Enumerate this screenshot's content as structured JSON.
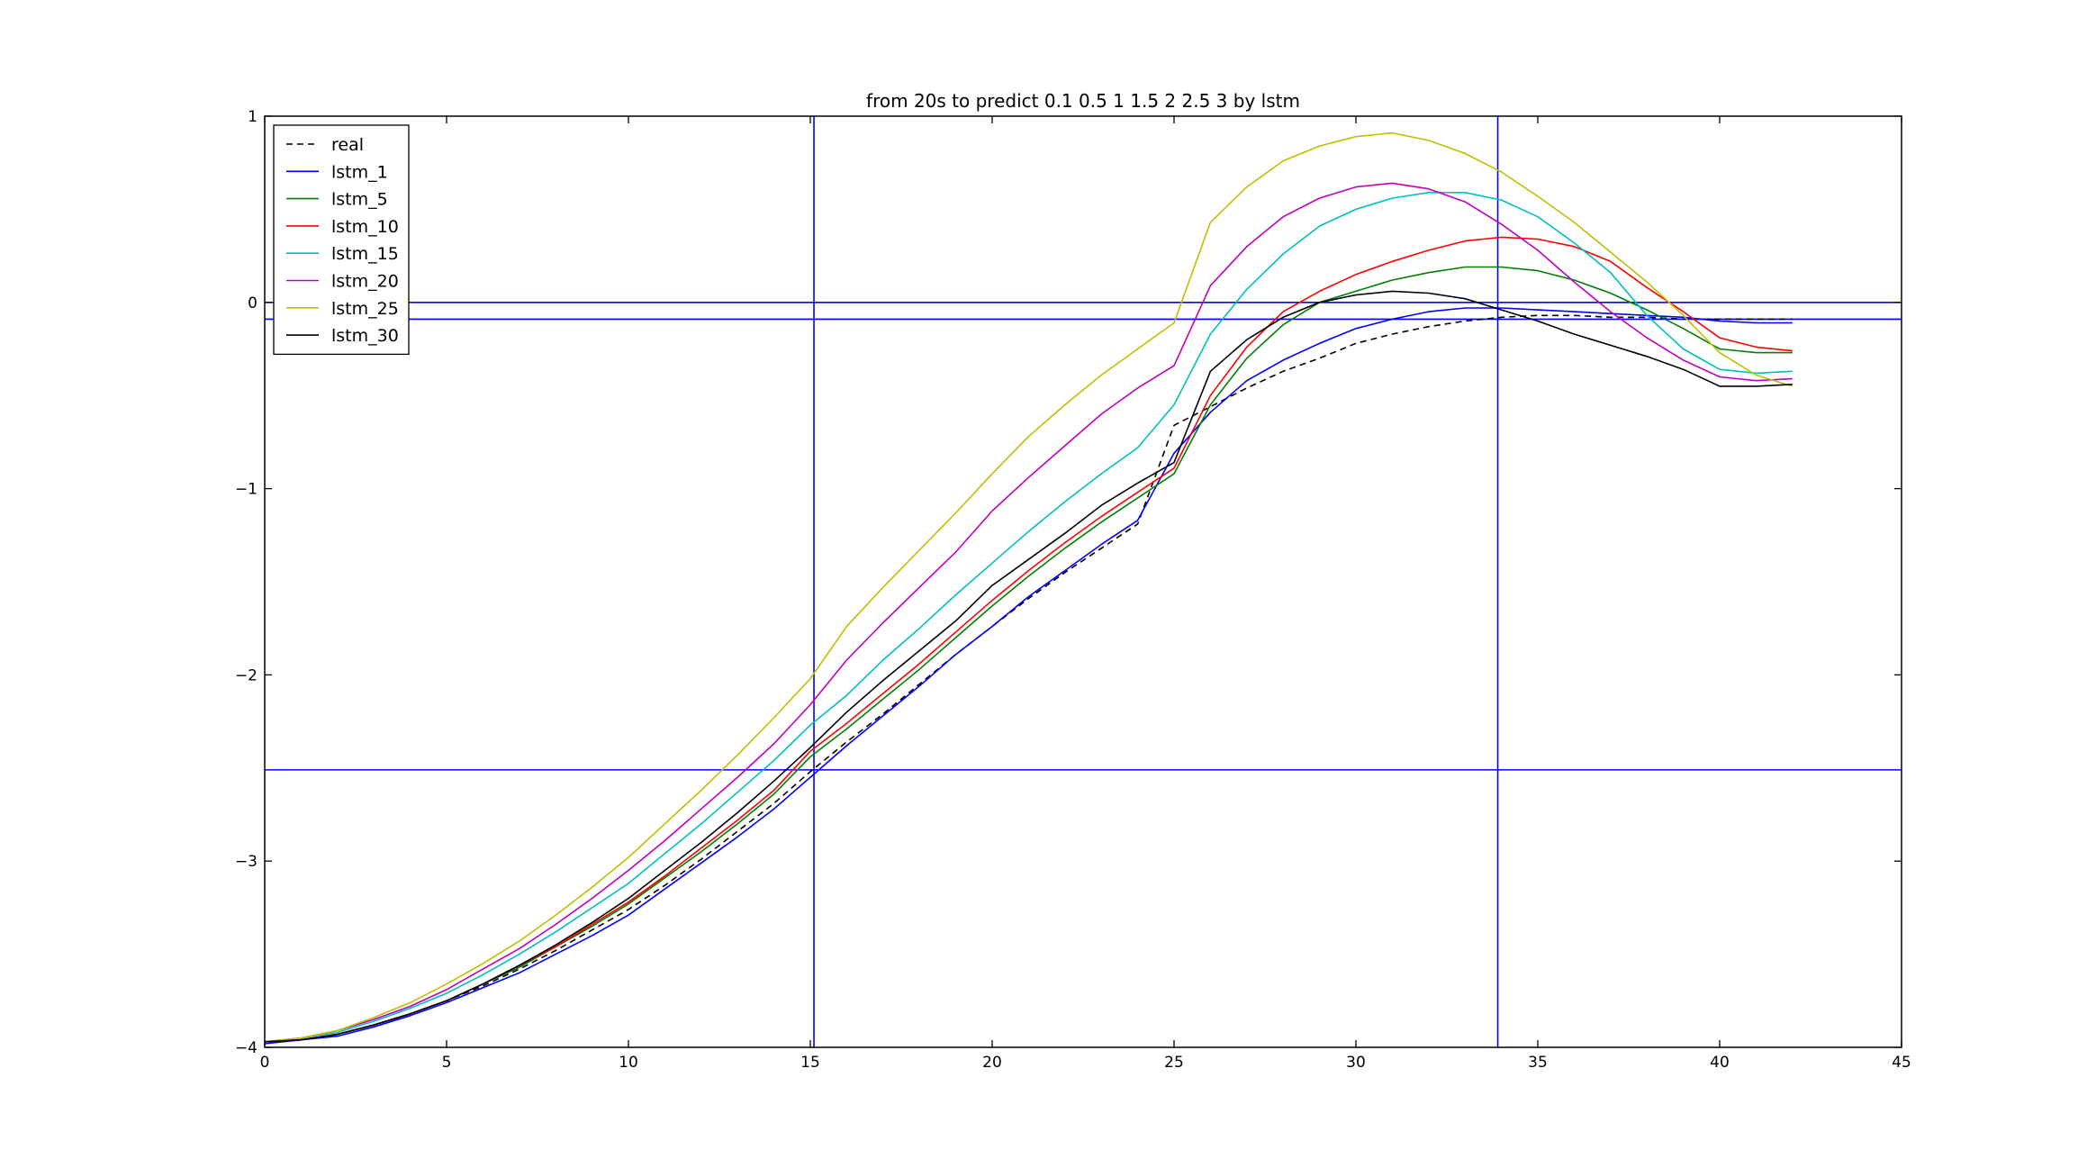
{
  "chart_data": {
    "type": "line",
    "title": "from 20s to predict 0.1 0.5 1 1.5 2 2.5 3 by lstm",
    "xlabel": "",
    "ylabel": "",
    "xlim": [
      0,
      45
    ],
    "ylim": [
      -4,
      1
    ],
    "xticks": [
      0,
      5,
      10,
      15,
      20,
      25,
      30,
      35,
      40,
      45
    ],
    "xtick_labels": [
      "0",
      "5",
      "10",
      "15",
      "20",
      "25",
      "30",
      "35",
      "40",
      "45"
    ],
    "yticks": [
      -4,
      -3,
      -2,
      -1,
      0,
      1
    ],
    "ytick_labels": [
      "−4",
      "−3",
      "−2",
      "−1",
      "0",
      "1"
    ],
    "grid": false,
    "legend_position": "top-left",
    "reference_lines": {
      "vertical_x": [
        15.1,
        33.9
      ],
      "horizontal_y": [
        0.0,
        -0.09,
        -2.51
      ],
      "color": "#0000ff"
    },
    "x": [
      0,
      1,
      2,
      3,
      4,
      5,
      6,
      7,
      8,
      9,
      10,
      11,
      12,
      13,
      14,
      15,
      16,
      17,
      18,
      19,
      20,
      21,
      22,
      23,
      24,
      25,
      26,
      27,
      28,
      29,
      30,
      31,
      32,
      33,
      34,
      35,
      36,
      37,
      38,
      39,
      40,
      41,
      42
    ],
    "series": [
      {
        "name": "real",
        "color": "#000000",
        "dash": true,
        "values": [
          -3.97,
          -3.96,
          -3.93,
          -3.88,
          -3.82,
          -3.75,
          -3.67,
          -3.58,
          -3.48,
          -3.37,
          -3.26,
          -3.13,
          -2.99,
          -2.84,
          -2.69,
          -2.52,
          -2.36,
          -2.21,
          -2.05,
          -1.89,
          -1.74,
          -1.59,
          -1.45,
          -1.32,
          -1.19,
          -0.66,
          -0.56,
          -0.46,
          -0.37,
          -0.3,
          -0.22,
          -0.17,
          -0.13,
          -0.1,
          -0.08,
          -0.07,
          -0.07,
          -0.08,
          -0.08,
          -0.09,
          -0.09,
          -0.09,
          -0.09
        ]
      },
      {
        "name": "lstm_1",
        "color": "#0000ff",
        "values": [
          -3.98,
          -3.96,
          -3.94,
          -3.89,
          -3.83,
          -3.76,
          -3.68,
          -3.6,
          -3.5,
          -3.4,
          -3.29,
          -3.15,
          -3.01,
          -2.87,
          -2.72,
          -2.55,
          -2.38,
          -2.22,
          -2.06,
          -1.89,
          -1.74,
          -1.58,
          -1.44,
          -1.3,
          -1.17,
          -0.81,
          -0.59,
          -0.42,
          -0.31,
          -0.22,
          -0.14,
          -0.09,
          -0.05,
          -0.03,
          -0.03,
          -0.04,
          -0.05,
          -0.06,
          -0.07,
          -0.08,
          -0.1,
          -0.11,
          -0.11
        ]
      },
      {
        "name": "lstm_5",
        "color": "#008000",
        "values": [
          -3.97,
          -3.96,
          -3.93,
          -3.88,
          -3.82,
          -3.75,
          -3.66,
          -3.57,
          -3.46,
          -3.35,
          -3.23,
          -3.09,
          -2.95,
          -2.8,
          -2.64,
          -2.44,
          -2.29,
          -2.13,
          -1.97,
          -1.8,
          -1.63,
          -1.47,
          -1.32,
          -1.18,
          -1.05,
          -0.92,
          -0.55,
          -0.3,
          -0.12,
          0.0,
          0.06,
          0.12,
          0.16,
          0.19,
          0.19,
          0.17,
          0.12,
          0.05,
          -0.04,
          -0.14,
          -0.25,
          -0.27,
          -0.27
        ]
      },
      {
        "name": "lstm_10",
        "color": "#ff0000",
        "values": [
          -3.97,
          -3.96,
          -3.93,
          -3.88,
          -3.82,
          -3.75,
          -3.66,
          -3.56,
          -3.46,
          -3.34,
          -3.22,
          -3.08,
          -2.93,
          -2.78,
          -2.62,
          -2.41,
          -2.26,
          -2.1,
          -1.94,
          -1.77,
          -1.6,
          -1.44,
          -1.29,
          -1.15,
          -1.02,
          -0.89,
          -0.5,
          -0.24,
          -0.05,
          0.06,
          0.15,
          0.22,
          0.28,
          0.33,
          0.35,
          0.34,
          0.3,
          0.22,
          0.08,
          -0.05,
          -0.19,
          -0.24,
          -0.26
        ]
      },
      {
        "name": "lstm_15",
        "color": "#00bfbf",
        "values": [
          -3.97,
          -3.95,
          -3.92,
          -3.86,
          -3.79,
          -3.71,
          -3.61,
          -3.5,
          -3.38,
          -3.25,
          -3.12,
          -2.96,
          -2.8,
          -2.63,
          -2.46,
          -2.27,
          -2.11,
          -1.92,
          -1.75,
          -1.57,
          -1.4,
          -1.23,
          -1.07,
          -0.92,
          -0.78,
          -0.55,
          -0.17,
          0.07,
          0.26,
          0.41,
          0.5,
          0.56,
          0.59,
          0.59,
          0.55,
          0.46,
          0.32,
          0.16,
          -0.07,
          -0.25,
          -0.36,
          -0.38,
          -0.37
        ]
      },
      {
        "name": "lstm_20",
        "color": "#bf00bf",
        "values": [
          -3.97,
          -3.95,
          -3.91,
          -3.85,
          -3.78,
          -3.69,
          -3.58,
          -3.47,
          -3.34,
          -3.2,
          -3.05,
          -2.89,
          -2.72,
          -2.55,
          -2.37,
          -2.16,
          -1.92,
          -1.72,
          -1.53,
          -1.34,
          -1.12,
          -0.94,
          -0.77,
          -0.6,
          -0.46,
          -0.34,
          0.09,
          0.3,
          0.46,
          0.56,
          0.62,
          0.64,
          0.61,
          0.54,
          0.42,
          0.28,
          0.11,
          -0.05,
          -0.19,
          -0.31,
          -0.4,
          -0.42,
          -0.41
        ]
      },
      {
        "name": "lstm_25",
        "color": "#bfbf00",
        "values": [
          -3.97,
          -3.95,
          -3.91,
          -3.84,
          -3.76,
          -3.66,
          -3.55,
          -3.43,
          -3.29,
          -3.14,
          -2.98,
          -2.8,
          -2.62,
          -2.43,
          -2.23,
          -2.02,
          -1.74,
          -1.53,
          -1.33,
          -1.13,
          -0.92,
          -0.72,
          -0.55,
          -0.39,
          -0.25,
          -0.11,
          0.43,
          0.62,
          0.76,
          0.84,
          0.89,
          0.91,
          0.87,
          0.8,
          0.7,
          0.57,
          0.43,
          0.27,
          0.11,
          -0.07,
          -0.27,
          -0.39,
          -0.45
        ]
      },
      {
        "name": "lstm_30",
        "color": "#000000",
        "values": [
          -3.97,
          -3.96,
          -3.93,
          -3.88,
          -3.82,
          -3.75,
          -3.66,
          -3.56,
          -3.45,
          -3.33,
          -3.2,
          -3.05,
          -2.9,
          -2.74,
          -2.57,
          -2.39,
          -2.2,
          -2.03,
          -1.87,
          -1.71,
          -1.52,
          -1.38,
          -1.24,
          -1.09,
          -0.97,
          -0.86,
          -0.37,
          -0.2,
          -0.08,
          0.0,
          0.04,
          0.06,
          0.05,
          0.02,
          -0.04,
          -0.1,
          -0.17,
          -0.23,
          -0.29,
          -0.36,
          -0.45,
          -0.45,
          -0.44
        ]
      }
    ]
  }
}
